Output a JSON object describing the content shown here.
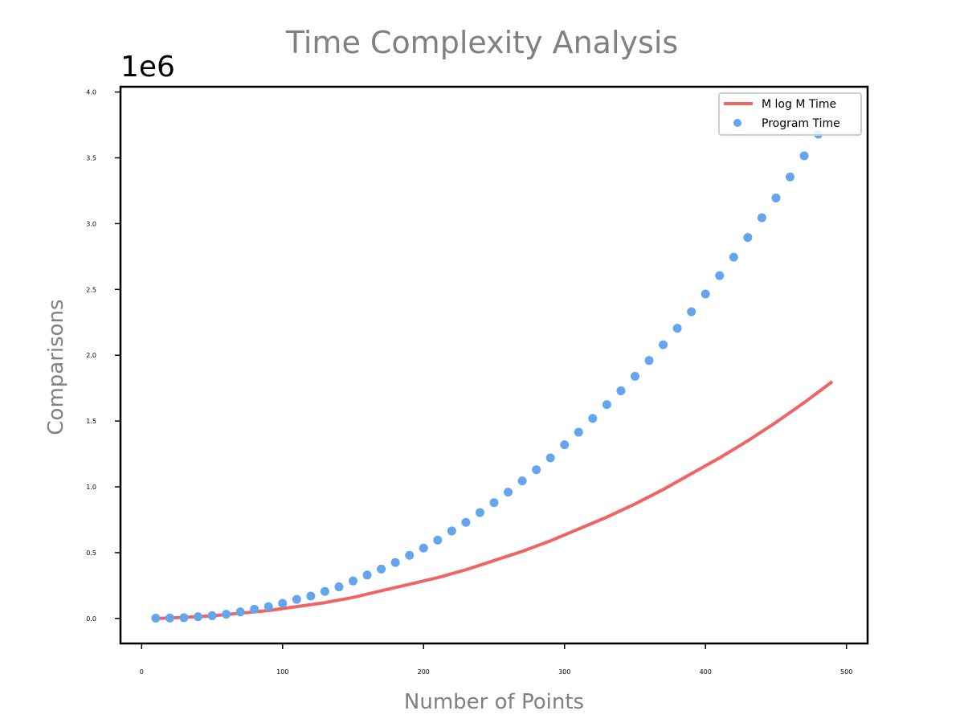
{
  "chart_data": {
    "type": "line",
    "title": "Time Complexity Analysis",
    "xlabel": "Number of Points",
    "ylabel": "Comparisons",
    "y_offset_label": "1e6",
    "xlim": [
      -15,
      515
    ],
    "ylim": [
      -190000,
      4040000
    ],
    "x_ticks": [
      0,
      100,
      200,
      300,
      400,
      500
    ],
    "x_tick_labels": [
      "0",
      "100",
      "200",
      "300",
      "400",
      "500"
    ],
    "y_ticks": [
      0,
      500000,
      1000000,
      1500000,
      2000000,
      2500000,
      3000000,
      3500000,
      4000000
    ],
    "y_tick_labels": [
      "0.0",
      "0.5",
      "1.0",
      "1.5",
      "2.0",
      "2.5",
      "3.0",
      "3.5",
      "4.0"
    ],
    "grid": false,
    "legend_position": "top-right",
    "series": [
      {
        "name": "M log M Time",
        "kind": "line",
        "color": "#f06464",
        "x": [
          10,
          30,
          50,
          70,
          90,
          110,
          130,
          150,
          170,
          190,
          210,
          230,
          250,
          270,
          290,
          310,
          330,
          350,
          370,
          390,
          410,
          430,
          450,
          470,
          490
        ],
        "y": [
          0,
          8000,
          20000,
          40000,
          60000,
          90000,
          120000,
          160000,
          210000,
          260000,
          310000,
          370000,
          440000,
          510000,
          590000,
          680000,
          770000,
          870000,
          980000,
          1100000,
          1220000,
          1350000,
          1490000,
          1640000,
          1800000
        ]
      },
      {
        "name": "Program Time",
        "kind": "scatter",
        "color": "#64a5f0",
        "x": [
          10,
          20,
          30,
          40,
          50,
          60,
          70,
          80,
          90,
          100,
          110,
          120,
          130,
          140,
          150,
          160,
          170,
          180,
          190,
          200,
          210,
          220,
          230,
          240,
          250,
          260,
          270,
          280,
          290,
          300,
          310,
          320,
          330,
          340,
          350,
          360,
          370,
          380,
          390,
          400,
          410,
          420,
          430,
          440,
          450,
          460,
          470,
          480
        ],
        "y": [
          2000,
          3000,
          6000,
          14000,
          21000,
          32000,
          50000,
          70000,
          90000,
          115000,
          145000,
          170000,
          205000,
          240000,
          285000,
          330000,
          375000,
          425000,
          480000,
          535000,
          595000,
          665000,
          730000,
          805000,
          880000,
          960000,
          1045000,
          1130000,
          1220000,
          1320000,
          1415000,
          1520000,
          1625000,
          1730000,
          1840000,
          1960000,
          2080000,
          2205000,
          2330000,
          2465000,
          2605000,
          2745000,
          2895000,
          3045000,
          3195000,
          3355000,
          3515000,
          3680000
        ]
      }
    ]
  }
}
